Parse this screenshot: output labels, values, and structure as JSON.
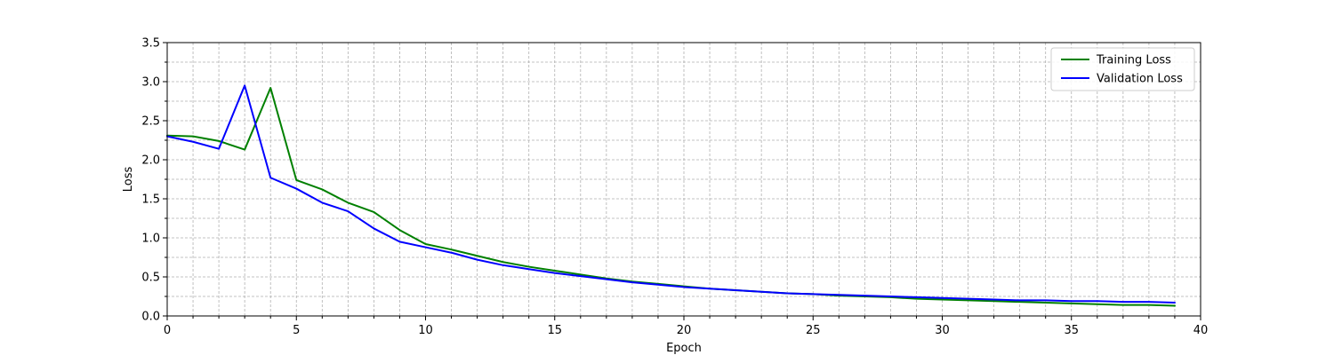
{
  "chart_data": {
    "type": "line",
    "title": "",
    "xlabel": "Epoch",
    "ylabel": "Loss",
    "xlim": [
      0,
      40
    ],
    "ylim": [
      0,
      3.5
    ],
    "xticks": [
      0,
      5,
      10,
      15,
      20,
      25,
      30,
      35,
      40
    ],
    "yticks": [
      0.0,
      0.5,
      1.0,
      1.5,
      2.0,
      2.5,
      3.0,
      3.5
    ],
    "xminor": [
      1,
      2,
      3,
      4,
      6,
      7,
      8,
      9,
      11,
      12,
      13,
      14,
      16,
      17,
      18,
      19,
      21,
      22,
      23,
      24,
      26,
      27,
      28,
      29,
      31,
      32,
      33,
      34,
      36,
      37,
      38,
      39
    ],
    "yminor": [
      0.25,
      0.75,
      1.25,
      1.75,
      2.25,
      2.75,
      3.25
    ],
    "grid": true,
    "legend_position": "top-right",
    "x": [
      0,
      1,
      2,
      3,
      4,
      5,
      6,
      7,
      8,
      9,
      10,
      11,
      12,
      13,
      14,
      15,
      16,
      17,
      18,
      19,
      20,
      21,
      22,
      23,
      24,
      25,
      26,
      27,
      28,
      29,
      30,
      31,
      32,
      33,
      34,
      35,
      36,
      37,
      38,
      39
    ],
    "series": [
      {
        "name": "Training Loss",
        "color": "#008000",
        "values": [
          2.31,
          2.3,
          2.24,
          2.13,
          2.92,
          1.74,
          1.62,
          1.45,
          1.33,
          1.1,
          0.92,
          0.85,
          0.77,
          0.69,
          0.63,
          0.58,
          0.53,
          0.48,
          0.44,
          0.41,
          0.38,
          0.35,
          0.33,
          0.31,
          0.29,
          0.28,
          0.26,
          0.25,
          0.24,
          0.22,
          0.21,
          0.2,
          0.19,
          0.18,
          0.17,
          0.16,
          0.15,
          0.14,
          0.14,
          0.13
        ]
      },
      {
        "name": "Validation Loss",
        "color": "#0000ff",
        "values": [
          2.3,
          2.23,
          2.14,
          2.95,
          1.77,
          1.63,
          1.45,
          1.34,
          1.12,
          0.95,
          0.88,
          0.81,
          0.72,
          0.65,
          0.6,
          0.55,
          0.51,
          0.47,
          0.43,
          0.4,
          0.37,
          0.35,
          0.33,
          0.31,
          0.29,
          0.28,
          0.27,
          0.26,
          0.25,
          0.24,
          0.23,
          0.22,
          0.21,
          0.2,
          0.2,
          0.19,
          0.19,
          0.18,
          0.18,
          0.17
        ]
      }
    ]
  }
}
